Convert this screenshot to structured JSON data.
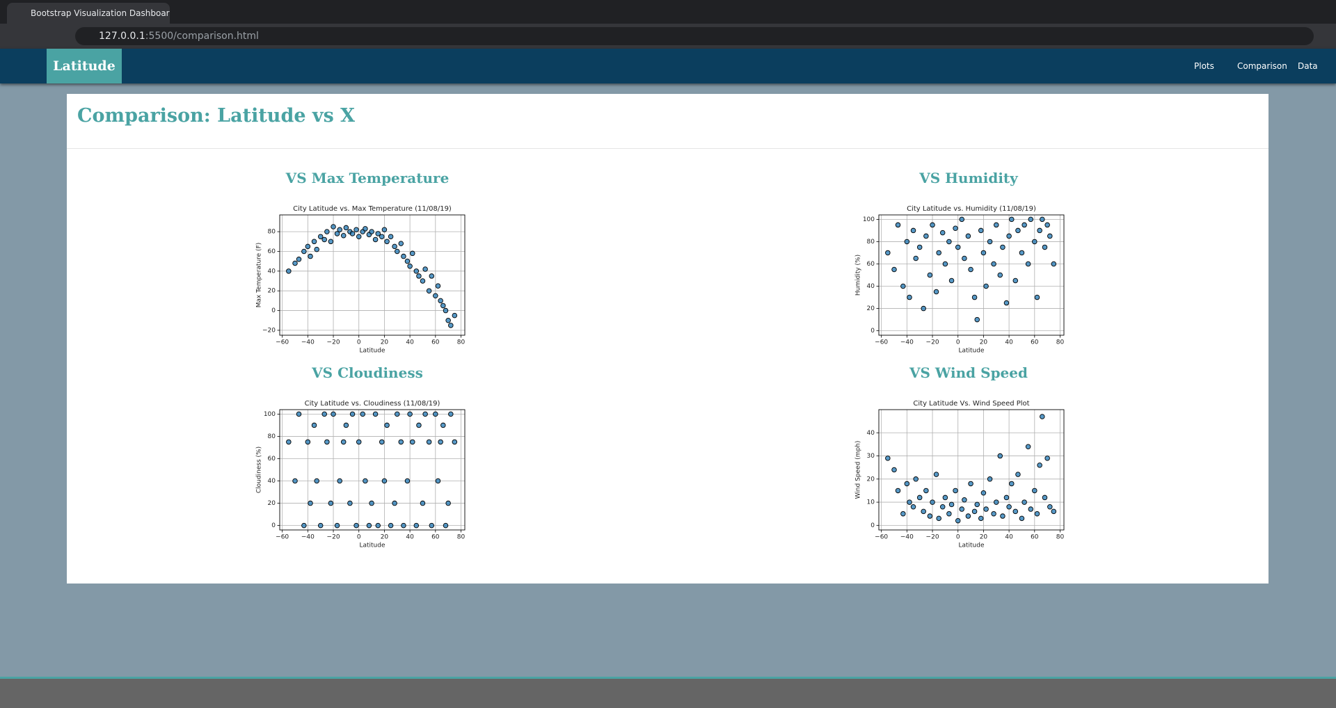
{
  "browser": {
    "tab_title": "Bootstrap Visualization Dashboard",
    "url_host": "127.0.0.1",
    "url_rest": ":5500/comparison.html"
  },
  "navbar": {
    "brand": "Latitude",
    "links": [
      "Plots",
      "Comparison",
      "Data"
    ]
  },
  "page": {
    "title": "Comparison: Latitude vs X",
    "headings": [
      "VS Max Temperature",
      "VS Humidity",
      "VS Cloudiness",
      "VS Wind Speed"
    ]
  },
  "chart_data": [
    {
      "type": "scatter",
      "title": "City Latitude vs. Max Temperature (11/08/19)",
      "x_label": "Latitude",
      "y_label": "Max Temperature (F)",
      "color": "#1f77b4",
      "grid": true,
      "xlim": [
        -62,
        83
      ],
      "xticks": [
        {
          "value": -60,
          "label": "−60"
        },
        {
          "value": -40,
          "label": "−40"
        },
        {
          "value": -20,
          "label": "−20"
        },
        0,
        20,
        40,
        60,
        80
      ],
      "ylim": [
        -25,
        97
      ],
      "yticks": [
        {
          "value": -20,
          "label": "−20"
        },
        0,
        20,
        40,
        60,
        80
      ],
      "x": [
        -55,
        -50,
        -47,
        -43,
        -40,
        -38,
        -35,
        -33,
        -30,
        -27,
        -25,
        -22,
        -20,
        -17,
        -15,
        -12,
        -10,
        -7,
        -5,
        -2,
        0,
        3,
        5,
        8,
        10,
        13,
        15,
        18,
        20,
        22,
        25,
        28,
        30,
        33,
        35,
        38,
        40,
        42,
        45,
        47,
        50,
        52,
        55,
        57,
        60,
        62,
        64,
        66,
        68,
        70,
        72,
        75
      ],
      "values": [
        40,
        48,
        52,
        60,
        65,
        55,
        70,
        62,
        75,
        72,
        80,
        70,
        85,
        78,
        82,
        76,
        84,
        80,
        78,
        82,
        75,
        80,
        83,
        77,
        80,
        72,
        78,
        75,
        82,
        70,
        75,
        65,
        60,
        68,
        55,
        50,
        45,
        58,
        40,
        35,
        30,
        42,
        20,
        35,
        15,
        25,
        10,
        5,
        0,
        -10,
        -15,
        -5
      ]
    },
    {
      "type": "scatter",
      "title": "City Latitude vs. Humidity (11/08/19)",
      "x_label": "Latitude",
      "y_label": "Humidity (%)",
      "color": "#1f77b4",
      "grid": true,
      "xlim": [
        -62,
        83
      ],
      "xticks": [
        {
          "value": -60,
          "label": "−60"
        },
        {
          "value": -40,
          "label": "−40"
        },
        {
          "value": -20,
          "label": "−20"
        },
        0,
        20,
        40,
        60,
        80
      ],
      "ylim": [
        -4,
        104
      ],
      "yticks": [
        0,
        20,
        40,
        60,
        80,
        100
      ],
      "x": [
        -55,
        -50,
        -47,
        -43,
        -40,
        -38,
        -35,
        -33,
        -30,
        -27,
        -25,
        -22,
        -20,
        -17,
        -15,
        -12,
        -10,
        -7,
        -5,
        -2,
        0,
        3,
        5,
        8,
        10,
        13,
        15,
        18,
        20,
        22,
        25,
        28,
        30,
        33,
        35,
        38,
        40,
        42,
        45,
        47,
        50,
        52,
        55,
        57,
        60,
        62,
        64,
        66,
        68,
        70,
        72,
        75
      ],
      "values": [
        70,
        55,
        95,
        40,
        80,
        30,
        90,
        65,
        75,
        20,
        85,
        50,
        95,
        35,
        70,
        88,
        60,
        80,
        45,
        92,
        75,
        100,
        65,
        85,
        55,
        30,
        10,
        90,
        70,
        40,
        80,
        60,
        95,
        50,
        75,
        25,
        85,
        100,
        45,
        90,
        70,
        95,
        60,
        100,
        80,
        30,
        90,
        100,
        75,
        95,
        85,
        60
      ]
    },
    {
      "type": "scatter",
      "title": "City Latitude vs. Cloudiness (11/08/19)",
      "x_label": "Latitude",
      "y_label": "Cloudiness (%)",
      "color": "#1f77b4",
      "grid": true,
      "xlim": [
        -62,
        83
      ],
      "xticks": [
        {
          "value": -60,
          "label": "−60"
        },
        {
          "value": -40,
          "label": "−40"
        },
        {
          "value": -20,
          "label": "−20"
        },
        0,
        20,
        40,
        60,
        80
      ],
      "ylim": [
        -4,
        104
      ],
      "yticks": [
        0,
        20,
        40,
        60,
        80,
        100
      ],
      "x": [
        -55,
        -50,
        -47,
        -43,
        -40,
        -38,
        -35,
        -33,
        -30,
        -27,
        -25,
        -22,
        -20,
        -17,
        -15,
        -12,
        -10,
        -7,
        -5,
        -2,
        0,
        3,
        5,
        8,
        10,
        13,
        15,
        18,
        20,
        22,
        25,
        28,
        30,
        33,
        35,
        38,
        40,
        42,
        45,
        47,
        50,
        52,
        55,
        57,
        60,
        62,
        64,
        66,
        68,
        70,
        72,
        75
      ],
      "values": [
        75,
        40,
        100,
        0,
        75,
        20,
        90,
        40,
        0,
        100,
        75,
        20,
        100,
        0,
        40,
        75,
        90,
        20,
        100,
        0,
        75,
        100,
        40,
        0,
        20,
        100,
        0,
        75,
        40,
        90,
        0,
        20,
        100,
        75,
        0,
        40,
        100,
        75,
        0,
        90,
        20,
        100,
        75,
        0,
        100,
        40,
        75,
        90,
        0,
        20,
        100,
        75
      ]
    },
    {
      "type": "scatter",
      "title": "City Latitude Vs. Wind Speed Plot",
      "x_label": "Latitude",
      "y_label": "Wind Speed (mph)",
      "color": "#1f77b4",
      "grid": true,
      "xlim": [
        -62,
        83
      ],
      "xticks": [
        {
          "value": -60,
          "label": "−60"
        },
        {
          "value": -40,
          "label": "−40"
        },
        {
          "value": -20,
          "label": "−20"
        },
        0,
        20,
        40,
        60,
        80
      ],
      "ylim": [
        -2,
        50
      ],
      "yticks": [
        0,
        10,
        20,
        30,
        40
      ],
      "x": [
        -55,
        -50,
        -47,
        -43,
        -40,
        -38,
        -35,
        -33,
        -30,
        -27,
        -25,
        -22,
        -20,
        -17,
        -15,
        -12,
        -10,
        -7,
        -5,
        -2,
        0,
        3,
        5,
        8,
        10,
        13,
        15,
        18,
        20,
        22,
        25,
        28,
        30,
        33,
        35,
        38,
        40,
        42,
        45,
        47,
        50,
        52,
        55,
        57,
        60,
        62,
        64,
        66,
        68,
        70,
        72,
        75
      ],
      "values": [
        29,
        24,
        15,
        5,
        18,
        10,
        8,
        20,
        12,
        6,
        15,
        4,
        10,
        22,
        3,
        8,
        12,
        5,
        9,
        15,
        2,
        7,
        11,
        4,
        18,
        6,
        9,
        3,
        14,
        7,
        20,
        5,
        10,
        30,
        4,
        12,
        8,
        18,
        6,
        22,
        3,
        10,
        34,
        7,
        15,
        5,
        26,
        47,
        12,
        29,
        8,
        6
      ]
    }
  ]
}
